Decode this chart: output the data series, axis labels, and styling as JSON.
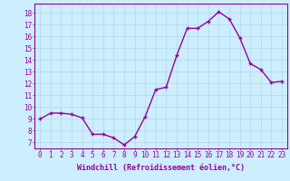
{
  "x": [
    0,
    1,
    2,
    3,
    4,
    5,
    6,
    7,
    8,
    9,
    10,
    11,
    12,
    13,
    14,
    15,
    16,
    17,
    18,
    19,
    20,
    21,
    22,
    23
  ],
  "y": [
    9.0,
    9.5,
    9.5,
    9.4,
    9.1,
    7.7,
    7.7,
    7.4,
    6.8,
    7.5,
    9.2,
    11.5,
    11.7,
    14.4,
    16.7,
    16.7,
    17.3,
    18.1,
    17.5,
    15.9,
    13.7,
    13.2,
    12.1,
    12.2
  ],
  "line_color": "#990099",
  "marker": "+",
  "markersize": 3.0,
  "linewidth": 1.0,
  "xlabel": "Windchill (Refroidissement éolien,°C)",
  "xlabel_fontsize": 6.0,
  "xlabel_color": "#990099",
  "xtick_labels": [
    "0",
    "1",
    "2",
    "3",
    "4",
    "5",
    "6",
    "7",
    "8",
    "9",
    "10",
    "11",
    "12",
    "13",
    "14",
    "15",
    "16",
    "17",
    "18",
    "19",
    "20",
    "21",
    "22",
    "23"
  ],
  "ytick_values": [
    7,
    8,
    9,
    10,
    11,
    12,
    13,
    14,
    15,
    16,
    17,
    18
  ],
  "ylim": [
    6.5,
    18.8
  ],
  "xlim": [
    -0.5,
    23.5
  ],
  "background_color": "#cceeff",
  "grid_color": "#b0d8e8",
  "tick_color": "#990099",
  "tick_fontsize": 5.5
}
